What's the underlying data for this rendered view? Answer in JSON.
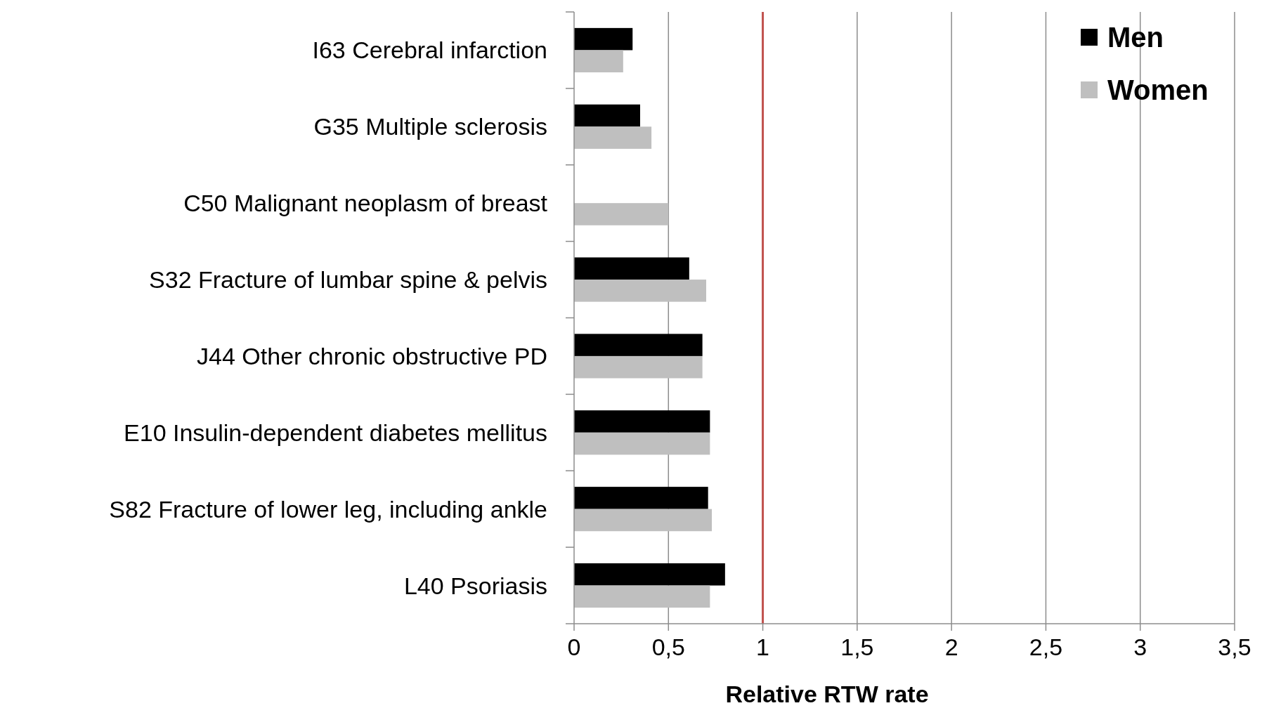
{
  "chart_data": {
    "type": "bar",
    "orientation": "horizontal",
    "xlabel": "Relative RTW rate",
    "categories": [
      "I63 Cerebral infarction",
      "G35 Multiple sclerosis",
      "C50 Malignant neoplasm of breast",
      "S32 Fracture of lumbar spine & pelvis",
      "J44 Other chronic obstructive PD",
      "E10 Insulin-dependent diabetes mellitus",
      "S82 Fracture of lower leg, including ankle",
      "L40 Psoriasis"
    ],
    "series": [
      {
        "name": "Men",
        "color": "#000000",
        "values": [
          0.31,
          0.35,
          null,
          0.61,
          0.68,
          0.72,
          0.71,
          0.8
        ]
      },
      {
        "name": "Women",
        "color": "#bfbfbf",
        "values": [
          0.26,
          0.41,
          0.5,
          0.7,
          0.68,
          0.72,
          0.73,
          0.72
        ]
      }
    ],
    "xlim": [
      0,
      3.5
    ],
    "xticks": [
      0,
      {
        "value": 0.5,
        "label": "0,5"
      },
      1,
      {
        "value": 1.5,
        "label": "1,5"
      },
      2,
      {
        "value": 2.5,
        "label": "2,5"
      },
      3,
      {
        "value": 3.5,
        "label": "3,5"
      }
    ],
    "grid": "x",
    "legend": "top right",
    "ref_lines": [
      {
        "axis": "x",
        "value": 1,
        "color": "#c0504d"
      }
    ]
  }
}
